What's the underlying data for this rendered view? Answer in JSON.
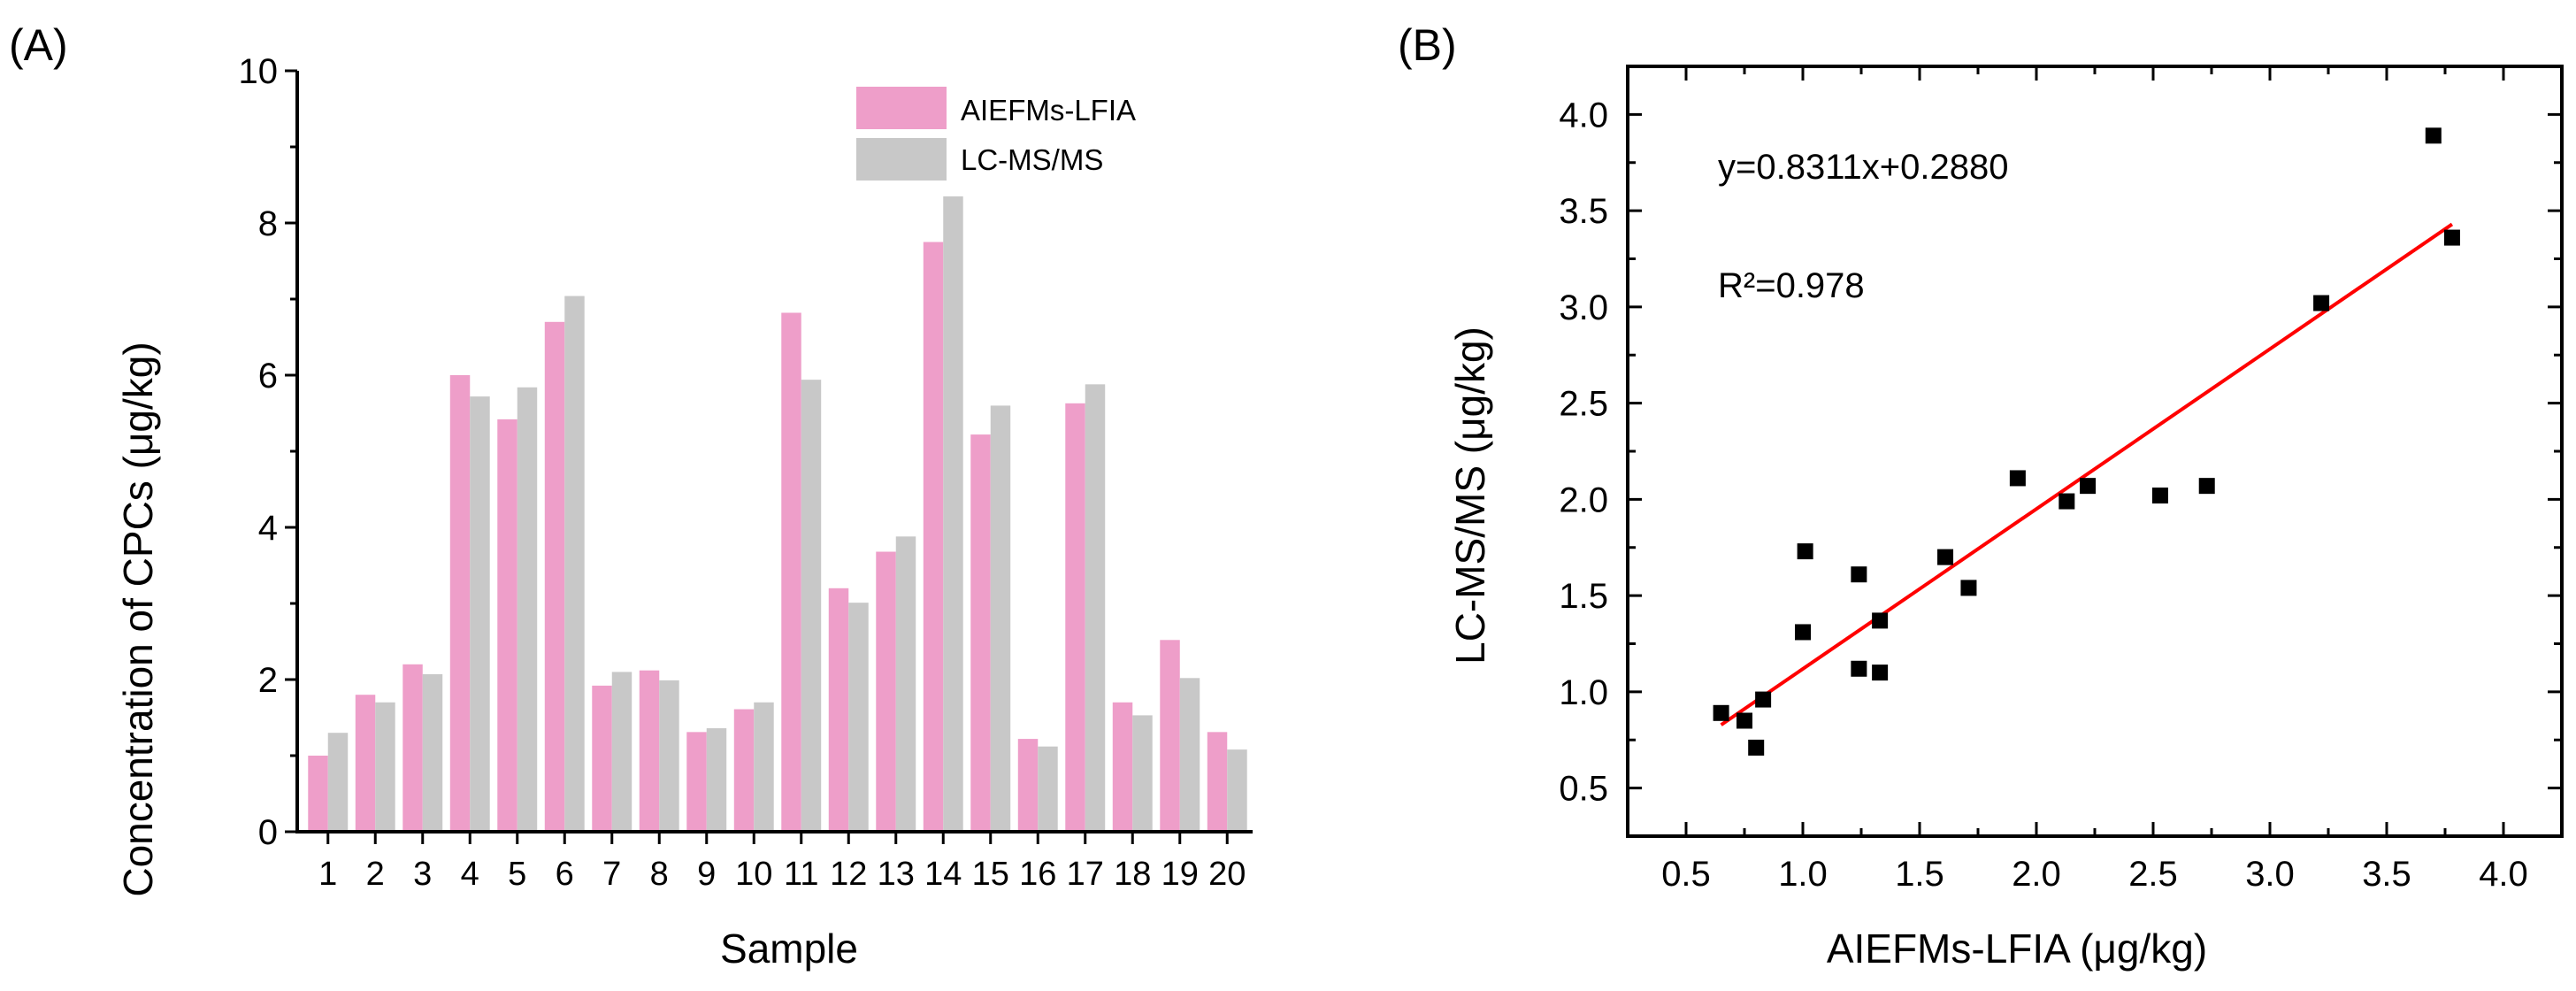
{
  "chart_data": [
    {
      "panel_label": "(A)",
      "type": "bar",
      "title": "",
      "xlabel": "Sample",
      "ylabel": "Concentration of CPCs (μg/kg)",
      "ylim": [
        0,
        10
      ],
      "yticks": [
        "0",
        "2",
        "4",
        "6",
        "8",
        "10"
      ],
      "categories": [
        "1",
        "2",
        "3",
        "4",
        "5",
        "6",
        "7",
        "8",
        "9",
        "10",
        "11",
        "12",
        "13",
        "14",
        "15",
        "16",
        "17",
        "18",
        "19",
        "20"
      ],
      "series": [
        {
          "name": "AIEFMs-LFIA",
          "color": "#ee9ec9",
          "values": [
            1.0,
            1.8,
            2.2,
            6.0,
            5.42,
            6.7,
            1.92,
            2.12,
            1.31,
            1.61,
            6.82,
            3.2,
            3.68,
            7.75,
            5.22,
            1.22,
            5.63,
            1.7,
            2.52,
            1.31
          ]
        },
        {
          "name": "LC-MS/MS",
          "color": "#c8c8c8",
          "values": [
            1.3,
            1.7,
            2.07,
            5.72,
            5.84,
            7.04,
            2.1,
            1.99,
            1.36,
            1.7,
            5.94,
            3.01,
            3.88,
            8.35,
            5.6,
            1.12,
            5.88,
            1.53,
            2.02,
            1.08
          ]
        }
      ],
      "legend_position": "top-right"
    },
    {
      "panel_label": "(B)",
      "type": "scatter",
      "title": "",
      "xlabel": "AIEFMs-LFIA (μg/kg)",
      "ylabel": "LC-MS/MS (μg/kg)",
      "xlim": [
        0.25,
        4.25
      ],
      "ylim": [
        0.25,
        4.25
      ],
      "xticks": [
        "0.5",
        "1.0",
        "1.5",
        "2.0",
        "2.5",
        "3.0",
        "3.5",
        "4.0"
      ],
      "yticks": [
        "0.5",
        "1.0",
        "1.5",
        "2.0",
        "2.5",
        "3.0",
        "3.5",
        "4.0"
      ],
      "points": {
        "color": "#000000",
        "x": [
          0.65,
          0.75,
          0.8,
          0.83,
          1.0,
          1.01,
          1.24,
          1.24,
          1.33,
          1.33,
          1.61,
          1.71,
          1.92,
          2.13,
          2.22,
          2.53,
          2.73,
          3.22,
          3.7,
          3.78
        ],
        "y": [
          0.89,
          0.85,
          0.71,
          0.96,
          1.31,
          1.73,
          1.61,
          1.12,
          1.37,
          1.1,
          1.7,
          1.54,
          2.11,
          1.99,
          2.07,
          2.02,
          2.07,
          3.02,
          3.89,
          3.36
        ]
      },
      "fit_line": {
        "color": "#ff0000",
        "slope": 0.8311,
        "intercept": 0.288,
        "x_range": [
          0.65,
          3.78
        ]
      },
      "annotations": {
        "equation": "y=0.8311x+0.2880",
        "r_squared": "R²=0.978"
      }
    }
  ]
}
